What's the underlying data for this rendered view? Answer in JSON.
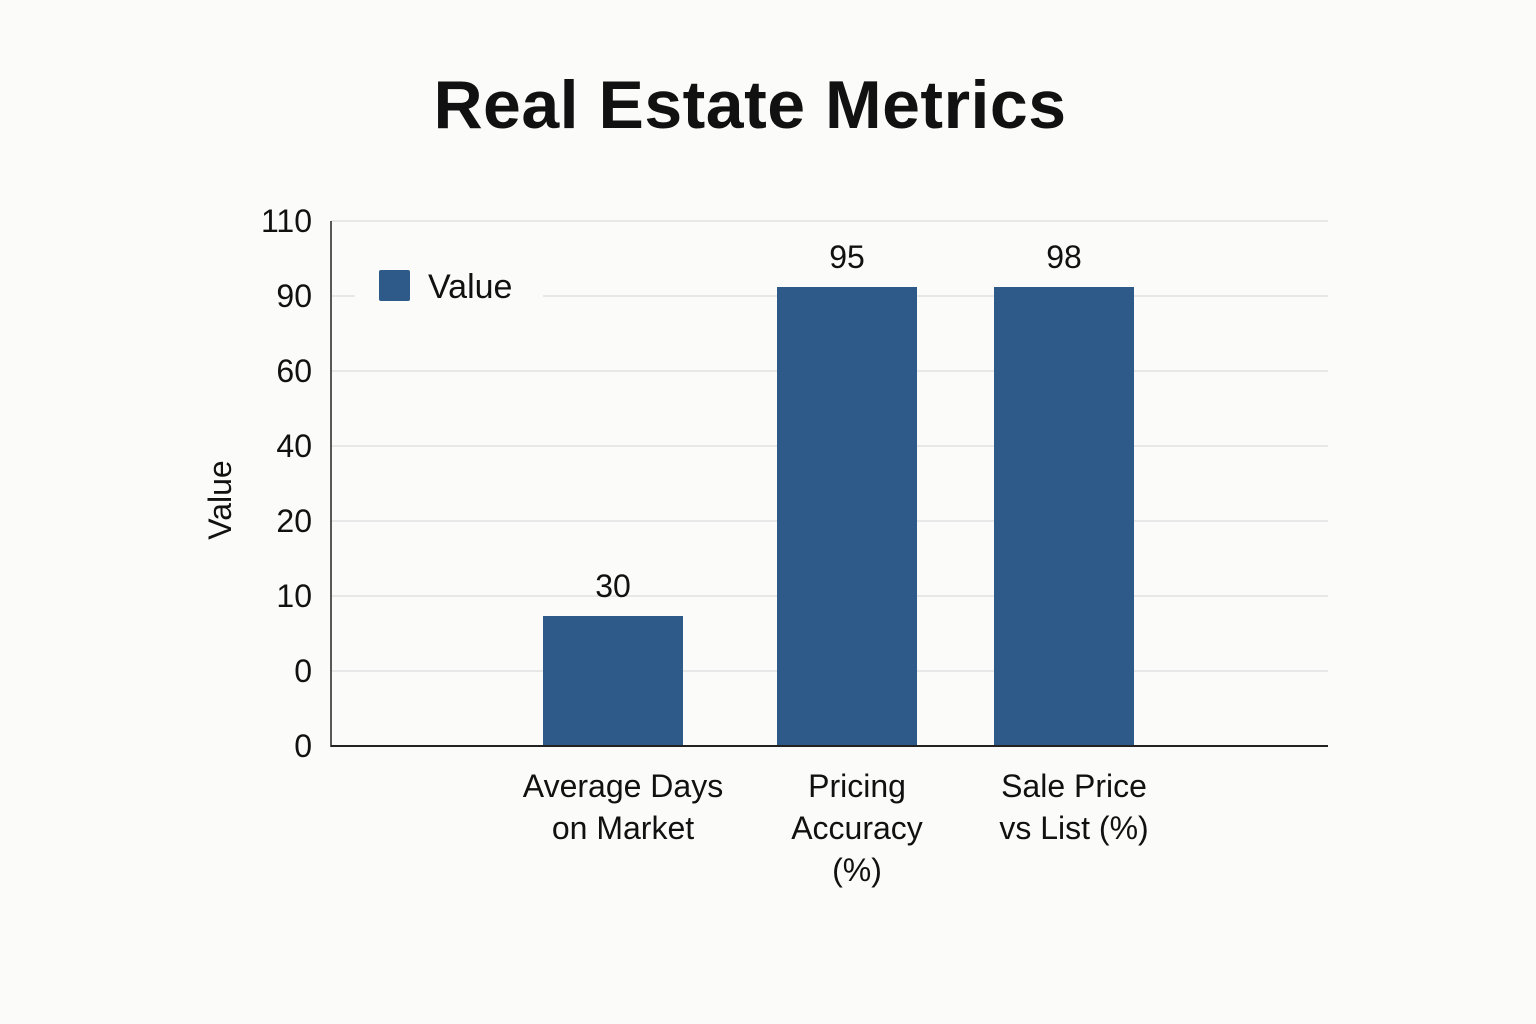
{
  "chart_data": {
    "type": "bar",
    "title": "Real Estate Metrics",
    "ylabel": "Value",
    "xlabel": "",
    "categories": [
      [
        "Average Days",
        "on Market"
      ],
      [
        "Pricing",
        "Accuracy",
        "(%)"
      ],
      [
        "Sale Price",
        "vs List (%)"
      ]
    ],
    "series": [
      {
        "name": "Value",
        "values": [
          30,
          95,
          98
        ]
      }
    ],
    "data_labels": [
      "30",
      "95",
      "98"
    ],
    "y_tick_labels": [
      "0",
      "0",
      "10",
      "20",
      "40",
      "60",
      "90",
      "110"
    ],
    "grid": true,
    "legend": "top-left",
    "bar_color": "#2e5a8a"
  }
}
